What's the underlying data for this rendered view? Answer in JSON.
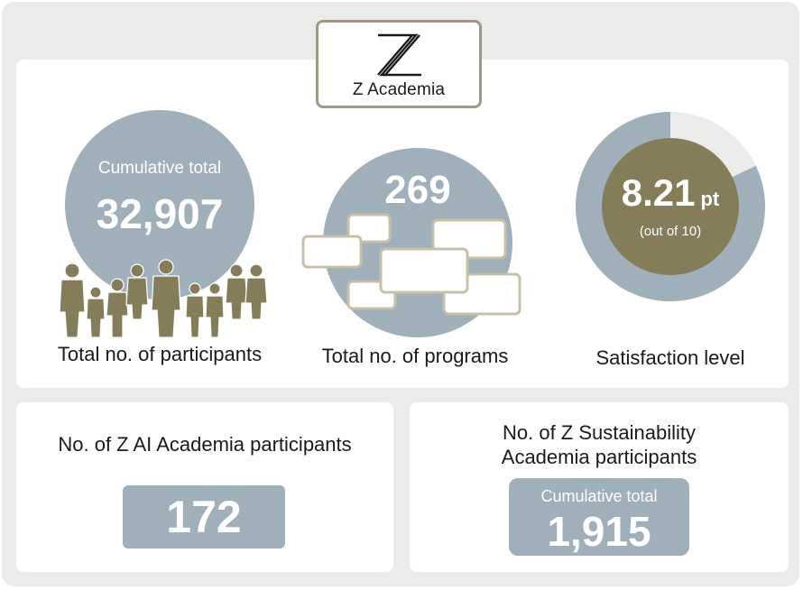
{
  "brand": {
    "logo_mark": "Z-academia-logo",
    "name": "Z Academia"
  },
  "participants": {
    "caption": "Cumulative total",
    "value": "32,907",
    "label": "Total no. of participants",
    "icon": "people-group-icon"
  },
  "programs": {
    "value": "269",
    "label": "Total no. of programs",
    "icon": "program-cards-icon"
  },
  "satisfaction": {
    "value": "8.21",
    "unit": "pt",
    "note": "(out of 10)",
    "label": "Satisfaction level",
    "ratio": 0.821
  },
  "ai_academia": {
    "label": "No. of Z AI Academia participants",
    "value": "172"
  },
  "sustainability_academia": {
    "label_line1": "No. of Z Sustainability",
    "label_line2": "Academia participants",
    "caption": "Cumulative total",
    "value": "1,915"
  },
  "colors": {
    "background": "#ebebea",
    "panel": "#ffffff",
    "accent_blue_gray": "#9fb0ba",
    "accent_olive": "#857c59",
    "donut_remainder": "#ebebea",
    "logo_border": "#9f9985"
  }
}
